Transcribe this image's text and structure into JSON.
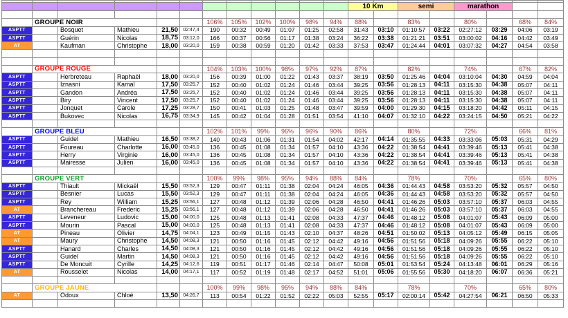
{
  "header": {
    "bands": [
      {
        "color": "#cc99ff",
        "cells": 6,
        "label": "",
        "merged": false
      },
      {
        "color": "#ccffcc",
        "cells": 6,
        "label": "",
        "merged": false
      },
      {
        "color": "#ffff99",
        "cells": 2,
        "label": "10 Km",
        "merged": true
      },
      {
        "color": "#ffcc99",
        "cells": 2,
        "label": "semi",
        "merged": true
      },
      {
        "color": "#ff99cc",
        "cells": 2,
        "label": "marathon",
        "merged": true
      },
      {
        "color": "#ffffff",
        "cells": 2,
        "label": "",
        "merged": false
      }
    ]
  },
  "clubs": {
    "ASPTT": {
      "label": "ASPTT",
      "bg": "#3626d9"
    },
    "AT": {
      "label": "AT",
      "bg": "#ff9933"
    }
  },
  "colors": {
    "percent_text": "#993333",
    "grid_line": "#8c8c8c"
  },
  "sections": [
    {
      "name": "GROUPE NOIR",
      "name_color": "#000000",
      "blank_rows_after": 2,
      "percents": [
        "106%",
        "105%",
        "102%",
        "100%",
        "98%",
        "94%",
        "88%",
        "",
        "83%",
        "",
        "80%",
        "",
        "68%",
        "84%"
      ],
      "athletes": [
        {
          "club": "ASPTT",
          "last": "Bosquet",
          "first": "Mathieu",
          "speed": "21,50",
          "pace": "02:47,4",
          "values": [
            "190",
            "00:32",
            "00:49",
            "01:07",
            "01:25",
            "02:58",
            "31:43",
            "03:10",
            "01:10:57",
            "03:22",
            "02:27:12",
            "03:29",
            "04:06",
            "03:19"
          ]
        },
        {
          "club": "ASPTT",
          "last": "Guérin",
          "first": "Nicolas",
          "speed": "18,75",
          "pace": "03:12,0",
          "values": [
            "166",
            "00:37",
            "00:56",
            "01:17",
            "01:38",
            "03:24",
            "36:22",
            "03:38",
            "01:21:21",
            "03:51",
            "03:00:02",
            "04:16",
            "04:42",
            "03:49"
          ]
        },
        {
          "club": "AT",
          "last": "Kaufman",
          "first": "Christophe",
          "speed": "18,00",
          "pace": "03:20,0",
          "values": [
            "159",
            "00:38",
            "00:59",
            "01:20",
            "01:42",
            "03:33",
            "37:53",
            "03:47",
            "01:24:44",
            "04:01",
            "03:07:32",
            "04:27",
            "04:54",
            "03:58"
          ]
        }
      ]
    },
    {
      "name": "GROUPE ROUGE",
      "name_color": "#ff0000",
      "blank_rows_after": 1,
      "percents": [
        "104%",
        "103%",
        "100%",
        "98%",
        "97%",
        "92%",
        "87%",
        "",
        "82%",
        "",
        "74%",
        "",
        "67%",
        "82%"
      ],
      "athletes": [
        {
          "club": "ASPTT",
          "last": "Herbreteau",
          "first": "Raphaël",
          "speed": "18,00",
          "pace": "03:20,0",
          "values": [
            "156",
            "00:39",
            "01:00",
            "01:22",
            "01:43",
            "03:37",
            "38:19",
            "03:50",
            "01:25:46",
            "04:04",
            "03:10:04",
            "04:30",
            "04:59",
            "04:04"
          ]
        },
        {
          "club": "ASPTT",
          "last": "Iznasni",
          "first": "Kamal",
          "speed": "17,50",
          "pace": "03:25,7",
          "values": [
            "152",
            "00:40",
            "01:02",
            "01:24",
            "01:46",
            "03:44",
            "39:25",
            "03:56",
            "01:28:13",
            "04:11",
            "03:15:30",
            "04:38",
            "05:07",
            "04:11"
          ]
        },
        {
          "club": "ASPTT",
          "last": "Gandon",
          "first": "Andréa",
          "speed": "17,50",
          "pace": "03:25,7",
          "values": [
            "152",
            "00:40",
            "01:02",
            "01:24",
            "01:46",
            "03:44",
            "39:25",
            "03:56",
            "01:28:13",
            "04:11",
            "03:15:30",
            "04:38",
            "05:07",
            "04:11"
          ]
        },
        {
          "club": "ASPTT",
          "last": "Biry",
          "first": "Vincent",
          "speed": "17,50",
          "pace": "03:25,7",
          "values": [
            "152",
            "00:40",
            "01:02",
            "01:24",
            "01:46",
            "03:44",
            "39:25",
            "03:56",
            "01:28:13",
            "04:11",
            "03:15:30",
            "04:38",
            "05:07",
            "04:11"
          ]
        },
        {
          "club": "ASPTT",
          "last": "Jonquet",
          "first": "Carole",
          "speed": "17,25",
          "pace": "03:28,7",
          "values": [
            "150",
            "00:41",
            "01:03",
            "01:25",
            "01:48",
            "03:47",
            "39:59",
            "04:00",
            "01:29:30",
            "04:15",
            "03:18:20",
            "04:42",
            "05:11",
            "04:15"
          ]
        },
        {
          "club": "ASPTT",
          "last": "Bukovec",
          "first": "Nicolas",
          "speed": "16,75",
          "pace": "03:34,9",
          "values": [
            "145",
            "00:42",
            "01:04",
            "01:28",
            "01:51",
            "03:54",
            "41:10",
            "04:07",
            "01:32:10",
            "04:22",
            "03:24:15",
            "04:50",
            "05:21",
            "04:22"
          ]
        }
      ]
    },
    {
      "name": "GROUPE BLEU",
      "name_color": "#0000ff",
      "blank_rows_after": 1,
      "percents": [
        "102%",
        "101%",
        "99%",
        "96%",
        "96%",
        "90%",
        "86%",
        "",
        "80%",
        "",
        "72%",
        "",
        "66%",
        "81%"
      ],
      "athletes": [
        {
          "club": "ASPTT",
          "last": "Guidel",
          "first": "Mathieu",
          "speed": "16,50",
          "pace": "03:38,2",
          "values": [
            "140",
            "00:43",
            "01:06",
            "01:31",
            "01:54",
            "04:02",
            "42:17",
            "04:14",
            "01:35:55",
            "04:33",
            "03:33:06",
            "05:03",
            "05:31",
            "04:29"
          ]
        },
        {
          "club": "ASPTT",
          "last": "Foureau",
          "first": "Charlotte",
          "speed": "16,00",
          "pace": "03:45,0",
          "values": [
            "136",
            "00:45",
            "01:08",
            "01:34",
            "01:57",
            "04:10",
            "43:36",
            "04:22",
            "01:38:54",
            "04:41",
            "03:39:46",
            "05:13",
            "05:41",
            "04:38"
          ]
        },
        {
          "club": "ASPTT",
          "last": "Herry",
          "first": "Virginie",
          "speed": "16,00",
          "pace": "03:45,0",
          "values": [
            "136",
            "00:45",
            "01:08",
            "01:34",
            "01:57",
            "04:10",
            "43:36",
            "04:22",
            "01:38:54",
            "04:41",
            "03:39:46",
            "05:13",
            "05:41",
            "04:38"
          ]
        },
        {
          "club": "ASPTT",
          "last": "Mairesse",
          "first": "Julien",
          "speed": "16,00",
          "pace": "03:45,0",
          "values": [
            "136",
            "00:45",
            "01:08",
            "01:34",
            "01:57",
            "04:10",
            "43:36",
            "04:22",
            "01:38:54",
            "04:41",
            "03:39:46",
            "05:13",
            "05:41",
            "04:38"
          ]
        }
      ]
    },
    {
      "name": "GROUPE VERT",
      "name_color": "#00a520",
      "blank_rows_after": 1,
      "percents": [
        "100%",
        "99%",
        "98%",
        "95%",
        "94%",
        "88%",
        "84%",
        "",
        "78%",
        "",
        "70%",
        "",
        "65%",
        "80%"
      ],
      "athletes": [
        {
          "club": "ASPTT",
          "last": "Thiault",
          "first": "Mickaël",
          "speed": "15,50",
          "pace": "03:52,3",
          "values": [
            "129",
            "00:47",
            "01:11",
            "01:38",
            "02:04",
            "04:24",
            "46:05",
            "04:36",
            "01:44:43",
            "04:58",
            "03:53:20",
            "05:32",
            "05:57",
            "04:50"
          ]
        },
        {
          "club": "ASPTT",
          "last": "Besnier",
          "first": "Lucas",
          "speed": "15,50",
          "pace": "03:52,3",
          "values": [
            "129",
            "00:47",
            "01:11",
            "01:38",
            "02:04",
            "04:24",
            "46:05",
            "04:36",
            "01:44:43",
            "04:58",
            "03:53:20",
            "05:32",
            "05:57",
            "04:50"
          ]
        },
        {
          "club": "ASPTT",
          "last": "Rey",
          "first": "William",
          "speed": "15,25",
          "pace": "03:56,1",
          "values": [
            "127",
            "00:48",
            "01:12",
            "01:39",
            "02:06",
            "04:28",
            "46:50",
            "04:41",
            "01:46:26",
            "05:03",
            "03:57:10",
            "05:37",
            "06:03",
            "04:55"
          ]
        },
        {
          "club": "AT",
          "last": "Branchereau",
          "first": "Frederic",
          "speed": "15,25",
          "pace": "03:56,1",
          "values": [
            "127",
            "00:48",
            "01:12",
            "01:39",
            "02:06",
            "04:28",
            "46:50",
            "04:41",
            "01:46:26",
            "05:03",
            "03:57:10",
            "05:37",
            "06:03",
            "04:55"
          ]
        },
        {
          "club": "ASPTT",
          "last": "Leveneur",
          "first": "Ludovic",
          "speed": "15,00",
          "pace": "04:00,0",
          "values": [
            "125",
            "00:48",
            "01:13",
            "01:41",
            "02:08",
            "04:33",
            "47:37",
            "04:46",
            "01:48:12",
            "05:08",
            "04:01:07",
            "05:43",
            "06:09",
            "05:00"
          ]
        },
        {
          "club": "ASPTT",
          "last": "Mourin",
          "first": "Pascal",
          "speed": "15,00",
          "pace": "04:00,0",
          "values": [
            "125",
            "00:48",
            "01:13",
            "01:41",
            "02:08",
            "04:33",
            "47:37",
            "04:46",
            "01:48:12",
            "05:08",
            "04:01:07",
            "05:43",
            "06:09",
            "05:00"
          ]
        },
        {
          "club": "AT",
          "last": "Pineau",
          "first": "Olivier",
          "speed": "14,75",
          "pace": "04:04,1",
          "values": [
            "123",
            "00:49",
            "01:15",
            "01:43",
            "02:10",
            "04:37",
            "48:26",
            "04:51",
            "01:50:02",
            "05:13",
            "04:05:12",
            "05:49",
            "06:15",
            "05:05"
          ]
        },
        {
          "club": "AT",
          "last": "Maury",
          "first": "Christophe",
          "speed": "14,50",
          "pace": "04:08,3",
          "values": [
            "121",
            "00:50",
            "01:16",
            "01:45",
            "02:12",
            "04:42",
            "49:16",
            "04:56",
            "01:51:56",
            "05:18",
            "04:09:26",
            "05:55",
            "06:22",
            "05:10"
          ]
        },
        {
          "club": "ASPTT",
          "last": "Hanard",
          "first": "Charles",
          "speed": "14,50",
          "pace": "04:08,3",
          "values": [
            "121",
            "00:50",
            "01:16",
            "01:45",
            "02:12",
            "04:42",
            "49:16",
            "04:56",
            "01:51:56",
            "05:18",
            "04:09:26",
            "05:55",
            "06:22",
            "05:10"
          ]
        },
        {
          "club": "ASPTT",
          "last": "Guidel",
          "first": "Martin",
          "speed": "14,50",
          "pace": "04:08,3",
          "values": [
            "121",
            "00:50",
            "01:16",
            "01:45",
            "02:12",
            "04:42",
            "49:16",
            "04:56",
            "01:51:56",
            "05:18",
            "04:09:26",
            "05:55",
            "06:22",
            "05:10"
          ]
        },
        {
          "club": "ASPTT",
          "last": "De Moncuit",
          "first": "Cyrille",
          "speed": "14,25",
          "pace": "04:12,6",
          "values": [
            "119",
            "00:51",
            "01:17",
            "01:46",
            "02:14",
            "04:47",
            "50:08",
            "05:01",
            "01:53:54",
            "05:24",
            "04:13:48",
            "06:01",
            "06:29",
            "05:16"
          ]
        },
        {
          "club": "AT",
          "last": "Rousselet",
          "first": "Nicolas",
          "speed": "14,00",
          "pace": "04:17,1",
          "values": [
            "117",
            "00:52",
            "01:19",
            "01:48",
            "02:17",
            "04:52",
            "51:01",
            "05:06",
            "01:55:56",
            "05:30",
            "04:18:20",
            "06:07",
            "06:36",
            "05:21"
          ]
        }
      ]
    },
    {
      "name": "GROUPE JAUNE",
      "name_color": "#ffb900",
      "blank_rows_after": 1,
      "percents": [
        "100%",
        "99%",
        "98%",
        "95%",
        "94%",
        "88%",
        "84%",
        "",
        "78%",
        "",
        "70%",
        "",
        "65%",
        "80%"
      ],
      "athletes": [
        {
          "club": "AT",
          "last": "Odoux",
          "first": "Chloé",
          "speed": "13,50",
          "pace": "04:26,7",
          "values": [
            "113",
            "00:54",
            "01:22",
            "01:52",
            "02:22",
            "05:03",
            "52:55",
            "05:17",
            "02:00:14",
            "05:42",
            "04:27:54",
            "06:21",
            "06:50",
            "05:33"
          ]
        }
      ]
    }
  ]
}
